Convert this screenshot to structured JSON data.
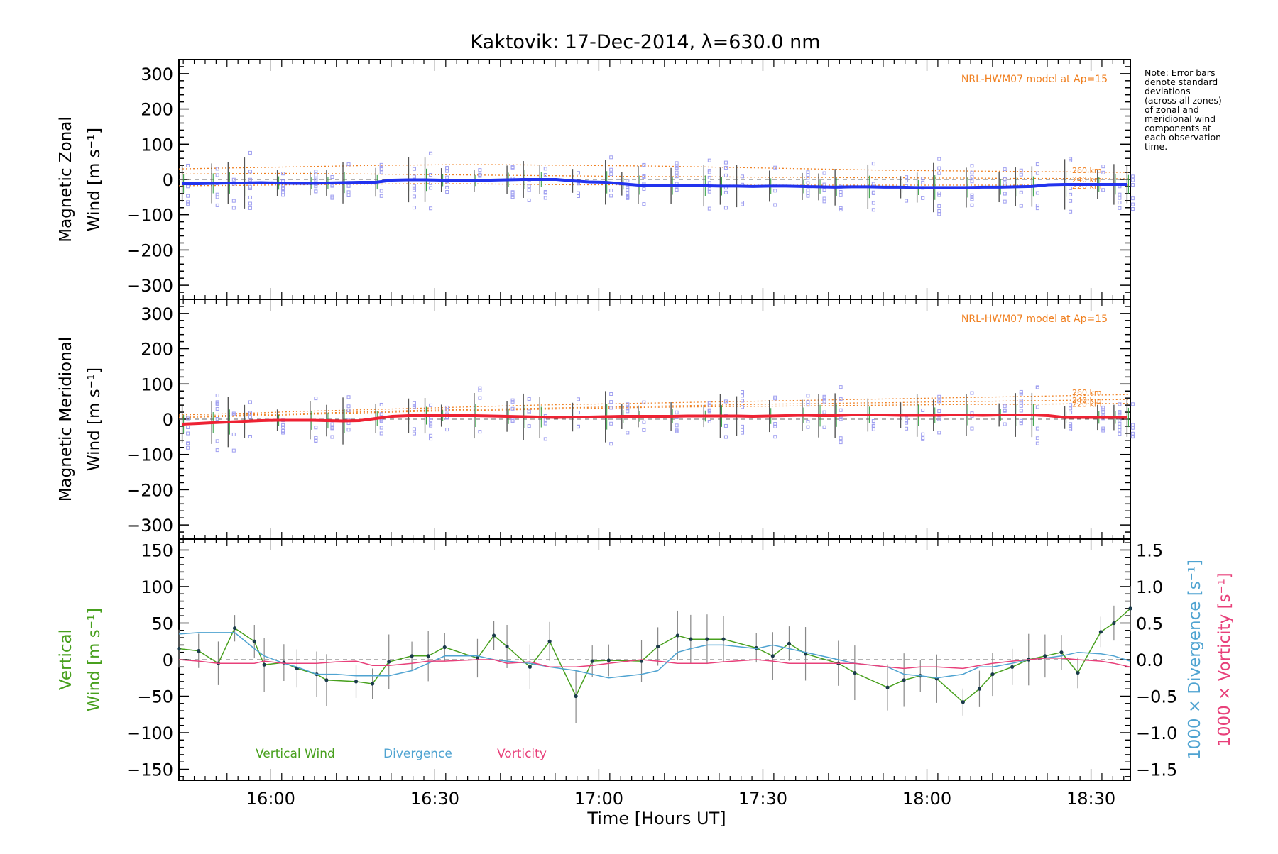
{
  "title": "Kaktovik: 17-Dec-2014, λ=630.0 nm",
  "xlabel": "Time [Hours UT]",
  "note_lines": [
    "Note: Error bars",
    "denote standard",
    "deviations",
    "(across all zones)",
    "of zonal and",
    "meridional wind",
    "components at",
    "each observation",
    "time."
  ],
  "colors": {
    "zonal": "#2233ee",
    "meridional": "#ee2233",
    "model": "#f07f1f",
    "vertical": "#48a01e",
    "divergence": "#4fa3d1",
    "vorticity": "#e8407a",
    "zone_marker": "#9f9ff0"
  },
  "chart_data": [
    {
      "type": "line",
      "id": "zonal",
      "ylabel_lines": [
        "Magnetic Zonal",
        "Wind [m s⁻¹]"
      ],
      "model_label": "NRL-HWM07 model at Ap=15",
      "model_alt_labels": [
        "260 km",
        "240 km",
        "220 km"
      ],
      "xlim": [
        15.72,
        18.62
      ],
      "ylim": [
        -340,
        340
      ],
      "yticks": [
        -300,
        -200,
        -100,
        0,
        100,
        200,
        300
      ],
      "x": [
        15.73,
        15.78,
        15.82,
        15.87,
        15.92,
        15.97,
        16.02,
        16.07,
        16.12,
        16.17,
        16.22,
        16.27,
        16.32,
        16.37,
        16.42,
        16.47,
        16.52,
        16.57,
        16.62,
        16.67,
        16.72,
        16.77,
        16.82,
        16.87,
        16.92,
        16.97,
        17.02,
        17.07,
        17.12,
        17.17,
        17.22,
        17.27,
        17.32,
        17.37,
        17.42,
        17.47,
        17.52,
        17.57,
        17.62,
        17.67,
        17.72,
        17.77,
        17.82,
        17.87,
        17.92,
        17.97,
        18.02,
        18.07,
        18.12,
        18.17,
        18.22,
        18.27,
        18.32,
        18.37,
        18.42,
        18.47,
        18.52,
        18.57,
        18.61
      ],
      "series": [
        {
          "values": [
            -12,
            -12,
            -11,
            -10,
            -10,
            -9,
            -10,
            -11,
            -11,
            -10,
            -9,
            -8,
            -8,
            -2,
            -1,
            -1,
            -2,
            -2,
            -3,
            -2,
            -1,
            0,
            0,
            0,
            -4,
            -7,
            -8,
            -12,
            -16,
            -18,
            -18,
            -18,
            -18,
            -19,
            -19,
            -20,
            -19,
            -19,
            -20,
            -21,
            -22,
            -21,
            -21,
            -22,
            -22,
            -23,
            -23,
            -23,
            -23,
            -22,
            -22,
            -21,
            -20,
            -15,
            -14,
            -14,
            -14,
            -14,
            -14
          ]
        }
      ],
      "models": [
        {
          "alt": "260 km",
          "values": [
            30,
            32,
            34,
            36,
            38,
            40,
            41,
            42,
            42,
            41,
            40,
            39,
            38,
            36,
            34,
            32,
            30,
            28,
            26,
            25,
            24,
            23,
            22,
            21,
            20
          ]
        },
        {
          "alt": "240 km",
          "values": [
            15,
            16,
            17,
            17,
            16,
            15,
            14,
            13,
            12,
            11,
            10,
            9,
            8,
            8,
            7,
            6,
            6,
            5,
            5,
            4,
            4,
            3,
            3,
            2,
            2
          ]
        },
        {
          "alt": "220 km",
          "values": [
            -18,
            -17,
            -16,
            -15,
            -14,
            -13,
            -12,
            -12,
            -13,
            -14,
            -15,
            -15,
            -16,
            -16,
            -16,
            -16,
            -16,
            -16,
            -16,
            -16,
            -16,
            -16,
            -16,
            -16,
            -16
          ]
        }
      ]
    },
    {
      "type": "line",
      "id": "meridional",
      "ylabel_lines": [
        "Magnetic Meridional",
        "Wind [m s⁻¹]"
      ],
      "model_label": "NRL-HWM07 model at Ap=15",
      "model_alt_labels": [
        "260 km",
        "240 km",
        "220 km"
      ],
      "xlim": [
        15.72,
        18.62
      ],
      "ylim": [
        -340,
        340
      ],
      "yticks": [
        -300,
        -200,
        -100,
        0,
        100,
        200,
        300
      ],
      "x": [
        15.73,
        15.78,
        15.82,
        15.87,
        15.92,
        15.97,
        16.02,
        16.07,
        16.12,
        16.17,
        16.22,
        16.27,
        16.32,
        16.37,
        16.42,
        16.47,
        16.52,
        16.57,
        16.62,
        16.67,
        16.72,
        16.77,
        16.82,
        16.87,
        16.92,
        16.97,
        17.02,
        17.07,
        17.12,
        17.17,
        17.22,
        17.27,
        17.32,
        17.37,
        17.42,
        17.47,
        17.52,
        17.57,
        17.62,
        17.67,
        17.72,
        17.77,
        17.82,
        17.87,
        17.92,
        17.97,
        18.02,
        18.07,
        18.12,
        18.17,
        18.22,
        18.27,
        18.32,
        18.37,
        18.42,
        18.47,
        18.52,
        18.57,
        18.61
      ],
      "series": [
        {
          "values": [
            -14,
            -12,
            -10,
            -8,
            -6,
            -4,
            -3,
            -3,
            -3,
            -4,
            -5,
            -4,
            2,
            8,
            10,
            10,
            10,
            10,
            10,
            9,
            8,
            7,
            6,
            5,
            6,
            6,
            7,
            8,
            8,
            8,
            8,
            9,
            9,
            9,
            9,
            8,
            9,
            10,
            11,
            10,
            10,
            12,
            12,
            12,
            11,
            11,
            11,
            12,
            12,
            11,
            12,
            12,
            12,
            10,
            5,
            5,
            5,
            5,
            5
          ]
        }
      ],
      "models": [
        {
          "alt": "260 km",
          "values": [
            12,
            15,
            18,
            22,
            25,
            28,
            31,
            34,
            37,
            40,
            42,
            44,
            46,
            48,
            50,
            52,
            54,
            56,
            58,
            60,
            62,
            64,
            66,
            68,
            70
          ]
        },
        {
          "alt": "240 km",
          "values": [
            8,
            10,
            13,
            16,
            19,
            22,
            25,
            27,
            29,
            31,
            33,
            35,
            37,
            39,
            41,
            43,
            44,
            46,
            47,
            49,
            50,
            52,
            53,
            55,
            56
          ]
        },
        {
          "alt": "220 km",
          "values": [
            5,
            7,
            10,
            13,
            16,
            19,
            22,
            24,
            26,
            28,
            30,
            32,
            34,
            35,
            36,
            37,
            38,
            39,
            40,
            41,
            42,
            42,
            43,
            44,
            45
          ]
        }
      ]
    },
    {
      "type": "line",
      "id": "vertical",
      "ylabel_lines": [
        "Vertical",
        "Wind [m s⁻¹]"
      ],
      "y2label_lines": [
        "1000 × Divergence [s⁻¹]",
        "1000 × Vorticity [s⁻¹]"
      ],
      "xlim": [
        15.72,
        18.62
      ],
      "ylim": [
        -165,
        165
      ],
      "yticks": [
        -150,
        -100,
        -50,
        0,
        50,
        100,
        150
      ],
      "y2lim": [
        -1.65,
        1.65
      ],
      "y2ticks": [
        -1.5,
        -1.0,
        -0.5,
        0.0,
        0.5,
        1.0,
        1.5
      ],
      "xticks": [
        16.0,
        16.5,
        17.0,
        17.5,
        18.0,
        18.5
      ],
      "xticklabels": [
        "16:00",
        "16:30",
        "17:00",
        "17:30",
        "18:00",
        "18:30"
      ],
      "legend": [
        "Vertical Wind",
        "Divergence",
        "Vorticity"
      ],
      "legend_placement": "bottom-left",
      "series": [
        {
          "name": "Vertical Wind",
          "axis": "left",
          "x": [
            15.72,
            15.78,
            15.84,
            15.89,
            15.95,
            15.98,
            16.04,
            16.08,
            16.14,
            16.17,
            16.26,
            16.31,
            16.36,
            16.43,
            16.48,
            16.53,
            16.63,
            16.68,
            16.72,
            16.79,
            16.85,
            16.93,
            16.98,
            17.03,
            17.13,
            17.18,
            17.24,
            17.28,
            17.33,
            17.38,
            17.48,
            17.53,
            17.58,
            17.63,
            17.73,
            17.78,
            17.88,
            17.93,
            17.98,
            18.03,
            18.11,
            18.16,
            18.2,
            18.26,
            18.31,
            18.36,
            18.41,
            18.46,
            18.53,
            18.57,
            18.62
          ],
          "values": [
            15,
            12,
            -5,
            43,
            25,
            -7,
            -4,
            -12,
            -20,
            -28,
            -30,
            -33,
            -3,
            5,
            5,
            17,
            2,
            33,
            18,
            -10,
            25,
            -50,
            -2,
            -1,
            -2,
            18,
            33,
            28,
            28,
            28,
            16,
            5,
            22,
            8,
            -5,
            -18,
            -38,
            -28,
            -22,
            -26,
            -58,
            -40,
            -20,
            -10,
            0,
            5,
            10,
            -18,
            38,
            50,
            70
          ]
        },
        {
          "name": "Divergence",
          "axis": "right",
          "x": [
            15.72,
            15.78,
            15.84,
            15.89,
            15.95,
            15.98,
            16.04,
            16.08,
            16.14,
            16.2,
            16.26,
            16.31,
            16.36,
            16.43,
            16.48,
            16.53,
            16.63,
            16.68,
            16.72,
            16.79,
            16.85,
            16.93,
            16.98,
            17.03,
            17.13,
            17.18,
            17.24,
            17.28,
            17.33,
            17.38,
            17.48,
            17.53,
            17.58,
            17.63,
            17.73,
            17.78,
            17.88,
            17.93,
            17.98,
            18.03,
            18.11,
            18.16,
            18.2,
            18.26,
            18.31,
            18.36,
            18.41,
            18.46,
            18.53,
            18.57,
            18.62
          ],
          "values": [
            0.35,
            0.37,
            0.37,
            0.37,
            0.15,
            0.05,
            -0.05,
            -0.1,
            -0.2,
            -0.2,
            -0.22,
            -0.22,
            -0.22,
            -0.15,
            -0.05,
            0.05,
            0.05,
            0.0,
            -0.02,
            -0.05,
            -0.1,
            -0.15,
            -0.2,
            -0.25,
            -0.2,
            -0.15,
            0.1,
            0.15,
            0.2,
            0.2,
            0.15,
            0.2,
            0.15,
            0.1,
            0.0,
            -0.05,
            -0.1,
            -0.2,
            -0.22,
            -0.25,
            -0.2,
            -0.1,
            -0.1,
            -0.05,
            0.0,
            0.02,
            0.05,
            0.1,
            0.08,
            0.05,
            -0.02
          ]
        },
        {
          "name": "Vorticity",
          "axis": "right",
          "x": [
            15.72,
            15.78,
            15.84,
            15.89,
            15.95,
            15.98,
            16.04,
            16.08,
            16.14,
            16.2,
            16.26,
            16.31,
            16.36,
            16.43,
            16.48,
            16.53,
            16.63,
            16.68,
            16.72,
            16.79,
            16.85,
            16.93,
            16.98,
            17.03,
            17.13,
            17.18,
            17.24,
            17.28,
            17.33,
            17.38,
            17.48,
            17.53,
            17.58,
            17.63,
            17.73,
            17.78,
            17.88,
            17.93,
            17.98,
            18.03,
            18.11,
            18.16,
            18.2,
            18.26,
            18.31,
            18.36,
            18.41,
            18.46,
            18.53,
            18.57,
            18.62
          ],
          "values": [
            0.0,
            -0.02,
            -0.05,
            -0.05,
            -0.05,
            -0.02,
            -0.05,
            -0.05,
            -0.05,
            -0.03,
            -0.02,
            -0.08,
            -0.08,
            -0.05,
            -0.02,
            -0.02,
            0.0,
            0.0,
            -0.05,
            -0.03,
            -0.1,
            -0.1,
            -0.08,
            -0.05,
            0.0,
            -0.02,
            -0.05,
            -0.05,
            -0.05,
            -0.03,
            0.0,
            -0.02,
            -0.05,
            -0.05,
            -0.05,
            -0.05,
            -0.1,
            -0.12,
            -0.1,
            -0.1,
            -0.12,
            -0.08,
            -0.05,
            -0.02,
            0.0,
            0.02,
            0.02,
            0.0,
            -0.02,
            -0.05,
            -0.1
          ]
        }
      ]
    }
  ]
}
